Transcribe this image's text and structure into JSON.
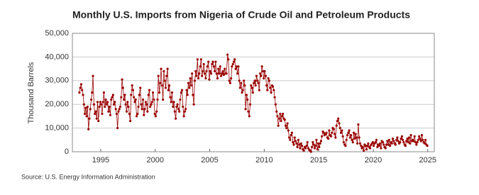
{
  "chart_data": {
    "type": "line",
    "title": "Monthly U.S. Imports from Nigeria of Crude Oil and Petroleum Products",
    "y_label": "Thousand Barrels",
    "source": "Source: U.S. Energy Information Administration",
    "xlim": [
      1992.4,
      2025.6
    ],
    "xticks": [
      1995,
      2000,
      2005,
      2010,
      2015,
      2020,
      2025
    ],
    "ylim": [
      0,
      50000
    ],
    "yticks": [
      0,
      {
        "value": 10000,
        "label": "10,000"
      },
      {
        "value": 20000,
        "label": "20,000"
      },
      {
        "value": 30000,
        "label": "30,000"
      },
      {
        "value": 40000,
        "label": "40,000"
      },
      {
        "value": 50000,
        "label": "50,000"
      }
    ],
    "grid": true,
    "x": [
      1993.04,
      1993.13,
      1993.21,
      1993.29,
      1993.38,
      1993.46,
      1993.54,
      1993.63,
      1993.71,
      1993.79,
      1993.88,
      1993.96,
      1994.04,
      1994.13,
      1994.21,
      1994.29,
      1994.38,
      1994.46,
      1994.54,
      1994.63,
      1994.71,
      1994.79,
      1994.88,
      1994.96,
      1995.04,
      1995.13,
      1995.21,
      1995.29,
      1995.38,
      1995.46,
      1995.54,
      1995.63,
      1995.71,
      1995.79,
      1995.88,
      1995.96,
      1996.04,
      1996.13,
      1996.21,
      1996.29,
      1996.38,
      1996.46,
      1996.54,
      1996.63,
      1996.71,
      1996.79,
      1996.88,
      1996.96,
      1997.04,
      1997.13,
      1997.21,
      1997.29,
      1997.38,
      1997.46,
      1997.54,
      1997.63,
      1997.71,
      1997.79,
      1997.88,
      1997.96,
      1998.04,
      1998.13,
      1998.21,
      1998.29,
      1998.38,
      1998.46,
      1998.54,
      1998.63,
      1998.71,
      1998.79,
      1998.88,
      1998.96,
      1999.04,
      1999.13,
      1999.21,
      1999.29,
      1999.38,
      1999.46,
      1999.54,
      1999.63,
      1999.71,
      1999.79,
      1999.88,
      1999.96,
      2000.04,
      2000.13,
      2000.21,
      2000.29,
      2000.38,
      2000.46,
      2000.54,
      2000.63,
      2000.71,
      2000.79,
      2000.88,
      2000.96,
      2001.04,
      2001.13,
      2001.21,
      2001.29,
      2001.38,
      2001.46,
      2001.54,
      2001.63,
      2001.71,
      2001.79,
      2001.88,
      2001.96,
      2002.04,
      2002.13,
      2002.21,
      2002.29,
      2002.38,
      2002.46,
      2002.54,
      2002.63,
      2002.71,
      2002.79,
      2002.88,
      2002.96,
      2003.04,
      2003.13,
      2003.21,
      2003.29,
      2003.38,
      2003.46,
      2003.54,
      2003.63,
      2003.71,
      2003.79,
      2003.88,
      2003.96,
      2004.04,
      2004.13,
      2004.21,
      2004.29,
      2004.38,
      2004.46,
      2004.54,
      2004.63,
      2004.71,
      2004.79,
      2004.88,
      2004.96,
      2005.04,
      2005.13,
      2005.21,
      2005.29,
      2005.38,
      2005.46,
      2005.54,
      2005.63,
      2005.71,
      2005.79,
      2005.88,
      2005.96,
      2006.04,
      2006.13,
      2006.21,
      2006.29,
      2006.38,
      2006.46,
      2006.54,
      2006.63,
      2006.71,
      2006.79,
      2006.88,
      2006.96,
      2007.04,
      2007.13,
      2007.21,
      2007.29,
      2007.38,
      2007.46,
      2007.54,
      2007.63,
      2007.71,
      2007.79,
      2007.88,
      2007.96,
      2008.04,
      2008.13,
      2008.21,
      2008.29,
      2008.38,
      2008.46,
      2008.54,
      2008.63,
      2008.71,
      2008.79,
      2008.88,
      2008.96,
      2009.04,
      2009.13,
      2009.21,
      2009.29,
      2009.38,
      2009.46,
      2009.54,
      2009.63,
      2009.71,
      2009.79,
      2009.88,
      2009.96,
      2010.04,
      2010.13,
      2010.21,
      2010.29,
      2010.38,
      2010.46,
      2010.54,
      2010.63,
      2010.71,
      2010.79,
      2010.88,
      2010.96,
      2011.04,
      2011.13,
      2011.21,
      2011.29,
      2011.38,
      2011.46,
      2011.54,
      2011.63,
      2011.71,
      2011.79,
      2011.88,
      2011.96,
      2012.04,
      2012.13,
      2012.21,
      2012.29,
      2012.38,
      2012.46,
      2012.54,
      2012.63,
      2012.71,
      2012.79,
      2012.88,
      2012.96,
      2013.04,
      2013.13,
      2013.21,
      2013.29,
      2013.38,
      2013.46,
      2013.54,
      2013.63,
      2013.71,
      2013.79,
      2013.88,
      2013.96,
      2014.04,
      2014.13,
      2014.21,
      2014.29,
      2014.38,
      2014.46,
      2014.54,
      2014.63,
      2014.71,
      2014.79,
      2014.88,
      2014.96,
      2015.04,
      2015.13,
      2015.21,
      2015.29,
      2015.38,
      2015.46,
      2015.54,
      2015.63,
      2015.71,
      2015.79,
      2015.88,
      2015.96,
      2016.04,
      2016.13,
      2016.21,
      2016.29,
      2016.38,
      2016.46,
      2016.54,
      2016.63,
      2016.71,
      2016.79,
      2016.88,
      2016.96,
      2017.04,
      2017.13,
      2017.21,
      2017.29,
      2017.38,
      2017.46,
      2017.54,
      2017.63,
      2017.71,
      2017.79,
      2017.88,
      2017.96,
      2018.04,
      2018.13,
      2018.21,
      2018.29,
      2018.38,
      2018.46,
      2018.54,
      2018.63,
      2018.71,
      2018.79,
      2018.88,
      2018.96,
      2019.04,
      2019.13,
      2019.21,
      2019.29,
      2019.38,
      2019.46,
      2019.54,
      2019.63,
      2019.71,
      2019.79,
      2019.88,
      2019.96,
      2020.04,
      2020.13,
      2020.21,
      2020.29,
      2020.38,
      2020.46,
      2020.54,
      2020.63,
      2020.71,
      2020.79,
      2020.88,
      2020.96,
      2021.04,
      2021.13,
      2021.21,
      2021.29,
      2021.38,
      2021.46,
      2021.54,
      2021.63,
      2021.71,
      2021.79,
      2021.88,
      2021.96,
      2022.04,
      2022.13,
      2022.21,
      2022.29,
      2022.38,
      2022.46,
      2022.54,
      2022.63,
      2022.71,
      2022.79,
      2022.88,
      2022.96,
      2023.04,
      2023.13,
      2023.21,
      2023.29,
      2023.38,
      2023.46,
      2023.54,
      2023.63,
      2023.71,
      2023.79,
      2023.88,
      2023.96,
      2024.04,
      2024.13,
      2024.21,
      2024.29,
      2024.38,
      2024.46,
      2024.54,
      2024.63,
      2024.71,
      2024.79,
      2024.88,
      2024.96
    ],
    "series": [
      {
        "color": "#990000",
        "values": [
          25000,
          27000,
          28500,
          26000,
          24000,
          20000,
          16000,
          18500,
          15000,
          19000,
          9500,
          14000,
          18000,
          22000,
          25000,
          32000,
          20000,
          16000,
          17000,
          14000,
          21000,
          13000,
          19000,
          21000,
          20000,
          16000,
          21000,
          25000,
          19000,
          22000,
          20000,
          21000,
          17000,
          19000,
          15500,
          22000,
          23000,
          24000,
          20000,
          21000,
          18000,
          16000,
          10000,
          17000,
          18000,
          19000,
          23000,
          30500,
          27000,
          22000,
          24000,
          20000,
          17000,
          21000,
          19000,
          16000,
          13000,
          24000,
          28000,
          26000,
          23000,
          21000,
          22000,
          15000,
          16000,
          19000,
          24000,
          27000,
          20000,
          18000,
          22000,
          15500,
          18000,
          21000,
          20000,
          17000,
          24000,
          26000,
          19000,
          20000,
          21000,
          25000,
          22000,
          16000,
          15000,
          17000,
          22000,
          32000,
          25000,
          29000,
          35000,
          28000,
          22000,
          34000,
          30000,
          27000,
          32000,
          35000,
          26000,
          28000,
          23000,
          21000,
          25000,
          19000,
          21000,
          17000,
          14000,
          19000,
          20000,
          18000,
          17000,
          22000,
          25000,
          26000,
          19000,
          15000,
          17000,
          18000,
          26000,
          24000,
          29000,
          27000,
          31000,
          28000,
          33000,
          24000,
          20000,
          30000,
          34000,
          32000,
          39000,
          31000,
          33000,
          36000,
          39000,
          32000,
          34000,
          37000,
          33000,
          31000,
          34000,
          36000,
          38000,
          30500,
          34000,
          33000,
          37000,
          38000,
          36000,
          34000,
          38000,
          33000,
          31000,
          35000,
          33000,
          36000,
          32000,
          33000,
          34000,
          32500,
          35000,
          33000,
          33000,
          41000,
          39000,
          30000,
          29000,
          31000,
          36000,
          37000,
          38000,
          39000,
          35000,
          36000,
          33000,
          36000,
          30000,
          27000,
          29000,
          25000,
          26000,
          30000,
          28000,
          18000,
          24000,
          22000,
          17000,
          15000,
          20000,
          28000,
          27000,
          25000,
          29000,
          30000,
          28000,
          32000,
          30000,
          29000,
          26000,
          33000,
          32000,
          36000,
          34000,
          31000,
          34000,
          32000,
          28000,
          26000,
          31000,
          30000,
          27000,
          25000,
          28000,
          27500,
          26000,
          23000,
          20000,
          17000,
          15000,
          11000,
          14000,
          16000,
          13000,
          15000,
          16000,
          14000,
          13500,
          11000,
          10000,
          12000,
          9000,
          6000,
          5000,
          7000,
          8000,
          4000,
          3000,
          6000,
          4500,
          3500,
          2000,
          5000,
          3000,
          1500,
          3500,
          2500,
          1000,
          500,
          2000,
          1500,
          2500,
          4000,
          1500,
          800,
          500,
          0,
          2000,
          4000,
          3000,
          1500,
          2500,
          5000,
          1000,
          3500,
          2000,
          3500,
          4500,
          6500,
          8500,
          8000,
          7000,
          7500,
          8000,
          6000,
          5500,
          9000,
          7000,
          6500,
          8000,
          10000,
          9500,
          7500,
          6000,
          11000,
          13000,
          14000,
          12000,
          10000,
          8000,
          9000,
          6500,
          4000,
          3000,
          2500,
          5000,
          7000,
          8000,
          9000,
          6000,
          7000,
          5000,
          4000,
          8000,
          5500,
          7500,
          6000,
          3500,
          11500,
          6000,
          3500,
          2500,
          1500,
          2000,
          500,
          3000,
          2500,
          1000,
          2500,
          3500,
          2000,
          1500,
          2800,
          3500,
          4000,
          2500,
          3500,
          4000,
          5000,
          2000,
          3000,
          2500,
          3500,
          1500,
          4500,
          4000,
          3000,
          2000,
          1500,
          3000,
          4500,
          3000,
          5000,
          2500,
          4000,
          3500,
          5500,
          4500,
          3500,
          3000,
          5000,
          6000,
          4500,
          3500,
          4000,
          5500,
          6500,
          5000,
          4000,
          3000,
          2500,
          4500,
          5500,
          4000,
          6000,
          3500,
          7000,
          4500,
          5000,
          4500,
          6500,
          4000,
          3000,
          4000,
          5000,
          6500,
          5500,
          4500,
          7000,
          5000,
          4000,
          3500,
          5000,
          3000,
          2500
        ]
      }
    ]
  }
}
